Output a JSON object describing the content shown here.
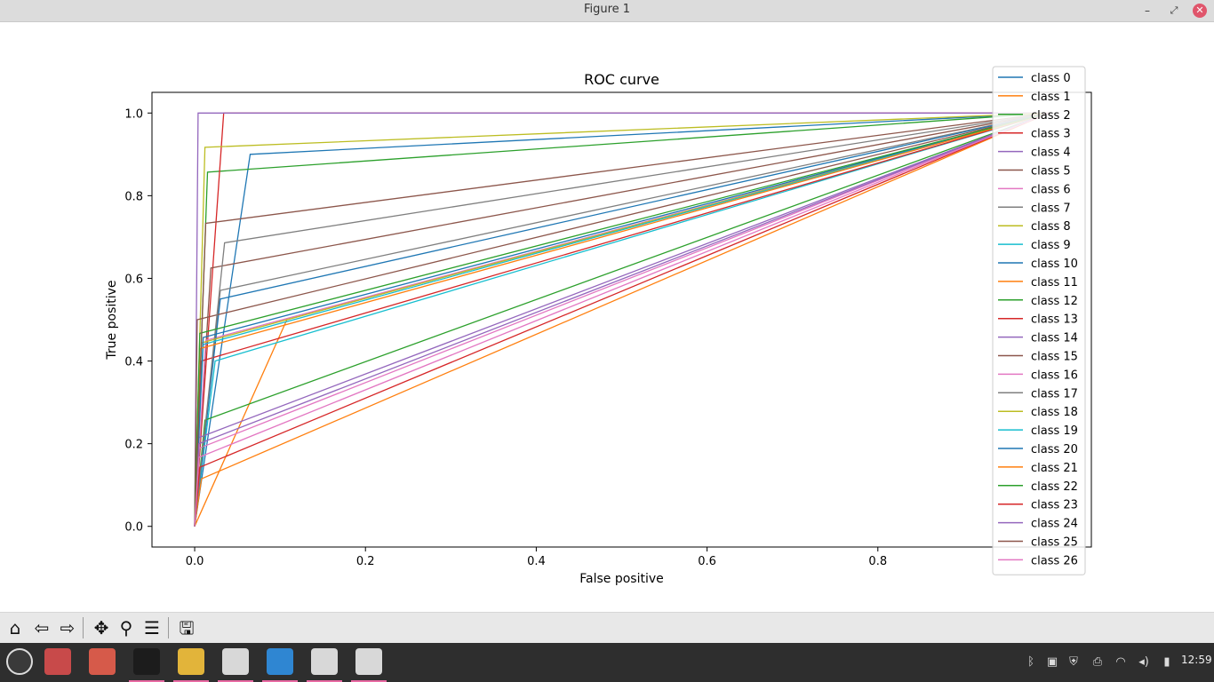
{
  "window": {
    "title": "Figure 1"
  },
  "chart_data": {
    "type": "line",
    "title": "ROC curve",
    "xlabel": "False positive",
    "ylabel": "True positive",
    "xlim": [
      -0.05,
      1.05
    ],
    "ylim": [
      -0.05,
      1.05
    ],
    "xticks": [
      "0.0",
      "0.2",
      "0.4",
      "0.6",
      "0.8"
    ],
    "xtick_values": [
      0.0,
      0.2,
      0.4,
      0.6,
      0.8
    ],
    "yticks": [
      "0.0",
      "0.2",
      "0.4",
      "0.6",
      "0.8",
      "1.0"
    ],
    "ytick_values": [
      0.0,
      0.2,
      0.4,
      0.6,
      0.8,
      1.0
    ],
    "legend_position": "top-right",
    "series": [
      {
        "name": "class 0",
        "color": "#1f77b4",
        "x": [
          0,
          0.065,
          1
        ],
        "y": [
          0,
          0.9,
          1
        ]
      },
      {
        "name": "class 1",
        "color": "#ff7f0e",
        "x": [
          0,
          0.108,
          1
        ],
        "y": [
          0,
          0.5,
          1
        ]
      },
      {
        "name": "class 2",
        "color": "#2ca02c",
        "x": [
          0,
          0.015,
          1
        ],
        "y": [
          0,
          0.857,
          1
        ]
      },
      {
        "name": "class 3",
        "color": "#d62728",
        "x": [
          0,
          0.034,
          1
        ],
        "y": [
          0,
          1.0,
          1
        ]
      },
      {
        "name": "class 4",
        "color": "#9467bd",
        "x": [
          0,
          0.004,
          1
        ],
        "y": [
          0,
          1.0,
          1
        ]
      },
      {
        "name": "class 5",
        "color": "#8c564b",
        "x": [
          0,
          0.019,
          1
        ],
        "y": [
          0,
          0.625,
          1
        ]
      },
      {
        "name": "class 6",
        "color": "#e377c2",
        "x": [
          0,
          0.013,
          1
        ],
        "y": [
          0,
          0.45,
          1
        ]
      },
      {
        "name": "class 7",
        "color": "#7f7f7f",
        "x": [
          0,
          0.03,
          1
        ],
        "y": [
          0,
          0.571,
          1
        ]
      },
      {
        "name": "class 8",
        "color": "#bcbd22",
        "x": [
          0,
          0.012,
          1
        ],
        "y": [
          0,
          0.917,
          1
        ]
      },
      {
        "name": "class 9",
        "color": "#17becf",
        "x": [
          0,
          0.024,
          1
        ],
        "y": [
          0,
          0.4,
          1
        ]
      },
      {
        "name": "class 10",
        "color": "#1f77b4",
        "x": [
          0,
          0.03,
          1
        ],
        "y": [
          0,
          0.55,
          1
        ]
      },
      {
        "name": "class 11",
        "color": "#ff7f0e",
        "x": [
          0,
          0.008,
          1
        ],
        "y": [
          0,
          0.115,
          1
        ]
      },
      {
        "name": "class 12",
        "color": "#2ca02c",
        "x": [
          0,
          0.012,
          1
        ],
        "y": [
          0,
          0.257,
          1
        ]
      },
      {
        "name": "class 13",
        "color": "#d62728",
        "x": [
          0,
          0.008,
          1
        ],
        "y": [
          0,
          0.4,
          1
        ]
      },
      {
        "name": "class 14",
        "color": "#9467bd",
        "x": [
          0,
          0.004,
          1
        ],
        "y": [
          0,
          0.214,
          1
        ]
      },
      {
        "name": "class 15",
        "color": "#8c564b",
        "x": [
          0,
          0.003,
          1
        ],
        "y": [
          0,
          0.5,
          1
        ]
      },
      {
        "name": "class 16",
        "color": "#e377c2",
        "x": [
          0,
          0.004,
          1
        ],
        "y": [
          0,
          0.188,
          1
        ]
      },
      {
        "name": "class 17",
        "color": "#7f7f7f",
        "x": [
          0,
          0.035,
          1
        ],
        "y": [
          0,
          0.686,
          1
        ]
      },
      {
        "name": "class 18",
        "color": "#bcbd22",
        "x": [
          0,
          0.008,
          1
        ],
        "y": [
          0,
          0.444,
          1
        ]
      },
      {
        "name": "class 19",
        "color": "#17becf",
        "x": [
          0,
          0.01,
          1
        ],
        "y": [
          0,
          0.44,
          1
        ]
      },
      {
        "name": "class 20",
        "color": "#1f77b4",
        "x": [
          0,
          0.01,
          1
        ],
        "y": [
          0,
          0.457,
          1
        ]
      },
      {
        "name": "class 21",
        "color": "#ff7f0e",
        "x": [
          0,
          0.006,
          1
        ],
        "y": [
          0,
          0.43,
          1
        ]
      },
      {
        "name": "class 22",
        "color": "#2ca02c",
        "x": [
          0,
          0.006,
          1
        ],
        "y": [
          0,
          0.467,
          1
        ]
      },
      {
        "name": "class 23",
        "color": "#d62728",
        "x": [
          0,
          0.006,
          1
        ],
        "y": [
          0,
          0.143,
          1
        ]
      },
      {
        "name": "class 24",
        "color": "#9467bd",
        "x": [
          0,
          0.005,
          1
        ],
        "y": [
          0,
          0.2,
          1
        ]
      },
      {
        "name": "class 25",
        "color": "#8c564b",
        "x": [
          0,
          0.013,
          1
        ],
        "y": [
          0,
          0.733,
          1
        ]
      },
      {
        "name": "class 26",
        "color": "#e377c2",
        "x": [
          0,
          0.005,
          1
        ],
        "y": [
          0,
          0.167,
          1
        ]
      }
    ]
  },
  "toolbar": {
    "buttons": [
      {
        "name": "home-button",
        "glyph": "⌂"
      },
      {
        "name": "back-button",
        "glyph": "⇦"
      },
      {
        "name": "forward-button",
        "glyph": "⇨"
      },
      {
        "name": "pan-button",
        "glyph": "✥"
      },
      {
        "name": "zoom-button",
        "glyph": "⚲"
      },
      {
        "name": "configure-subplots-button",
        "glyph": "☰"
      },
      {
        "name": "save-figure-button",
        "glyph": "🖫"
      }
    ]
  },
  "taskbar": {
    "apps": [
      {
        "name": "mint-menu",
        "color": "#3a3a3a",
        "active": false
      },
      {
        "name": "show-desktop",
        "color": "#c84a4a",
        "active": false
      },
      {
        "name": "files",
        "color": "#d65a4a",
        "active": false
      },
      {
        "name": "terminal",
        "color": "#1c1c1c",
        "active": true
      },
      {
        "name": "chrome",
        "color": "#e2b43a",
        "active": true
      },
      {
        "name": "matplotlib-figure-1",
        "color": "#d8d8d8",
        "active": true
      },
      {
        "name": "vscode",
        "color": "#2f86d2",
        "active": true
      },
      {
        "name": "matplotlib-figure-2",
        "color": "#d8d8d8",
        "active": true
      },
      {
        "name": "matplotlib-figure-3",
        "color": "#d8d8d8",
        "active": true
      }
    ],
    "tray": [
      {
        "name": "bluetooth-icon",
        "glyph": "ᛒ"
      },
      {
        "name": "clipboard-icon",
        "glyph": "▣"
      },
      {
        "name": "shield-icon",
        "glyph": "⛨"
      },
      {
        "name": "printer-icon",
        "glyph": "⎙"
      },
      {
        "name": "wifi-icon",
        "glyph": "◠"
      },
      {
        "name": "volume-icon",
        "glyph": "◂)"
      },
      {
        "name": "battery-icon",
        "glyph": "▮"
      }
    ],
    "clock": "12:59"
  }
}
